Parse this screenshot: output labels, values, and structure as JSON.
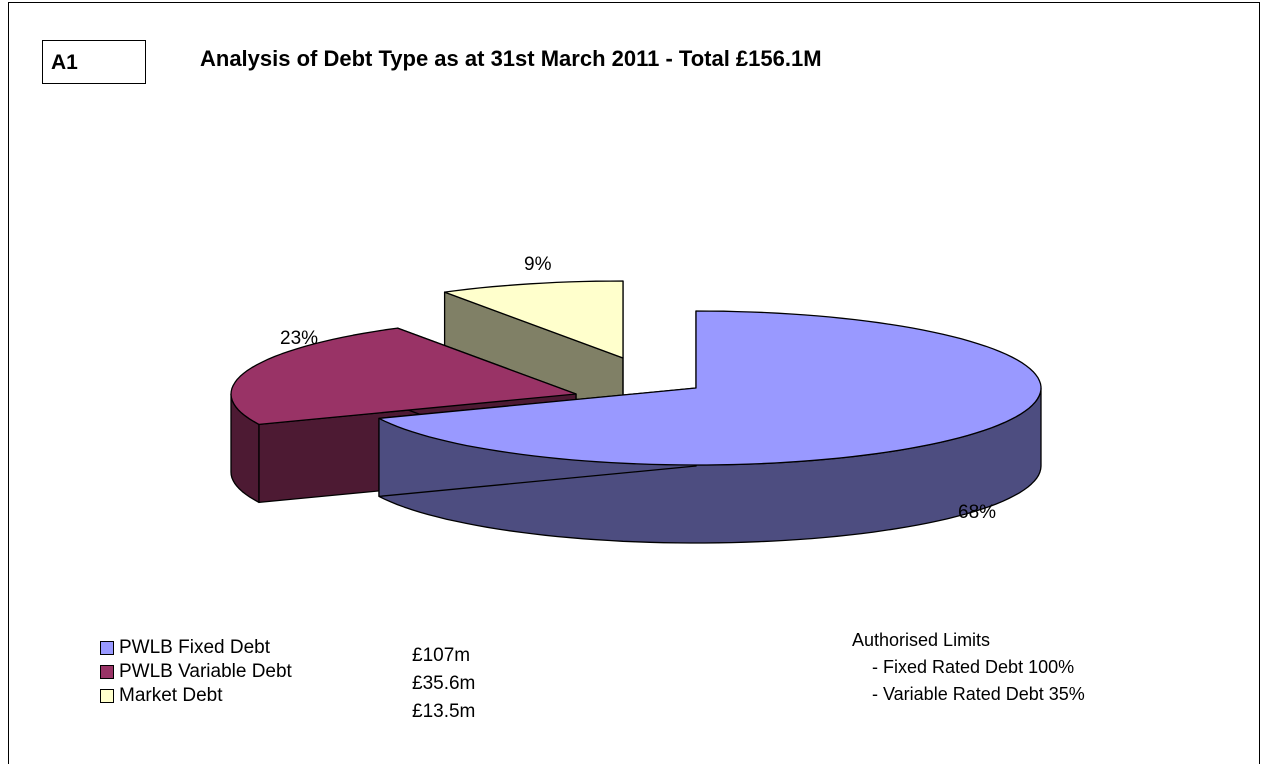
{
  "tag": "A1",
  "chart_data": {
    "type": "pie",
    "title": "Analysis of Debt Type as at 31st March 2011 - Total £156.1M",
    "slices": [
      {
        "name": "PWLB Fixed Debt",
        "value": 107,
        "amount": "£107m",
        "label": "68%",
        "color": "#9999FF",
        "side_color": "#4D4D80"
      },
      {
        "name": "PWLB Variable Debt",
        "value": 35.6,
        "amount": "£35.6m",
        "label": "23%",
        "color": "#993366",
        "side_color": "#4D1A33"
      },
      {
        "name": "Market Debt",
        "value": 13.5,
        "amount": "£13.5m",
        "label": "9%",
        "color": "#FFFFCC",
        "side_color": "#808066"
      }
    ],
    "style": "3d-exploded",
    "legend_position": "bottom-left"
  },
  "limits": {
    "title": "Authorised Limits",
    "lines": [
      "-  Fixed Rated Debt 100%",
      "-  Variable Rated Debt 35%"
    ]
  }
}
